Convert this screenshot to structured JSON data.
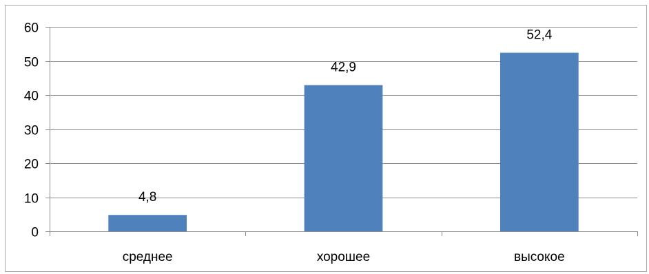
{
  "chart_data": {
    "type": "bar",
    "title": "",
    "xlabel": "",
    "ylabel": "",
    "categories": [
      "среднее",
      "хорошее",
      "высокое"
    ],
    "values": [
      4.8,
      42.9,
      52.4
    ],
    "data_labels": [
      "4,8",
      "42,9",
      "52,4"
    ],
    "y_ticks": [
      "0",
      "10",
      "20",
      "30",
      "40",
      "50",
      "60"
    ],
    "ylim": [
      0,
      60
    ],
    "y_step": 10,
    "grid": true,
    "legend": "none",
    "bar_color": "#4f81bd",
    "grid_color": "#8c8c8c",
    "axis_color": "#8c8c8c"
  }
}
